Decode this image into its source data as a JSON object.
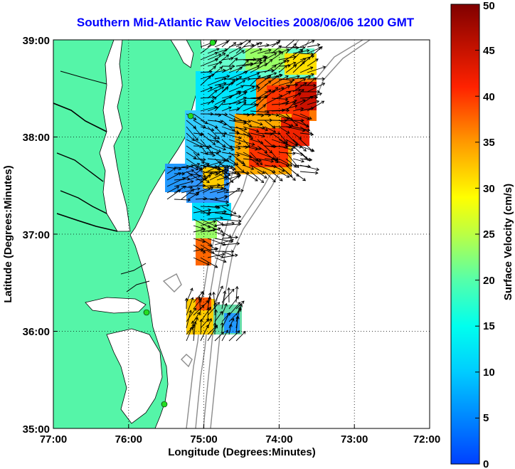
{
  "title": "Southern Mid-Atlantic Raw Velocities 2008/06/06 1200 GMT",
  "xlabel": "Longitude (Degrees:Minutes)",
  "ylabel": "Latitude (Degrees:Minutes)",
  "colorbar_label": "Surface Velocity (cm/s)",
  "x_ticks": [
    "77:00",
    "76:00",
    "75:00",
    "74:00",
    "73:00",
    "72:00"
  ],
  "y_ticks": [
    "39:00",
    "38:00",
    "37:00",
    "36:00",
    "35:00"
  ],
  "colorbar_ticks": [
    "0",
    "5",
    "10",
    "15",
    "20",
    "25",
    "30",
    "35",
    "40",
    "45",
    "50"
  ],
  "colors": {
    "land": "#55f5a8",
    "coast_line": "#000000",
    "bathymetry": "#8c8c8c",
    "title": "#0000ff"
  },
  "chart_data": {
    "type": "vector-field-map",
    "title": "Southern Mid-Atlantic Raw Velocities 2008/06/06 1200 GMT",
    "xlabel": "Longitude (Degrees:Minutes)",
    "ylabel": "Latitude (Degrees:Minutes)",
    "xlim": [
      -77,
      -72
    ],
    "ylim": [
      35,
      39
    ],
    "colorbar": {
      "label": "Surface Velocity (cm/s)",
      "range": [
        0,
        50
      ]
    },
    "stations": [
      {
        "lon": -74.92,
        "lat": 38.97
      },
      {
        "lon": -75.15,
        "lat": 38.22
      },
      {
        "lon": -75.77,
        "lat": 36.17
      },
      {
        "lon": -75.5,
        "lat": 35.25
      }
    ]
  }
}
